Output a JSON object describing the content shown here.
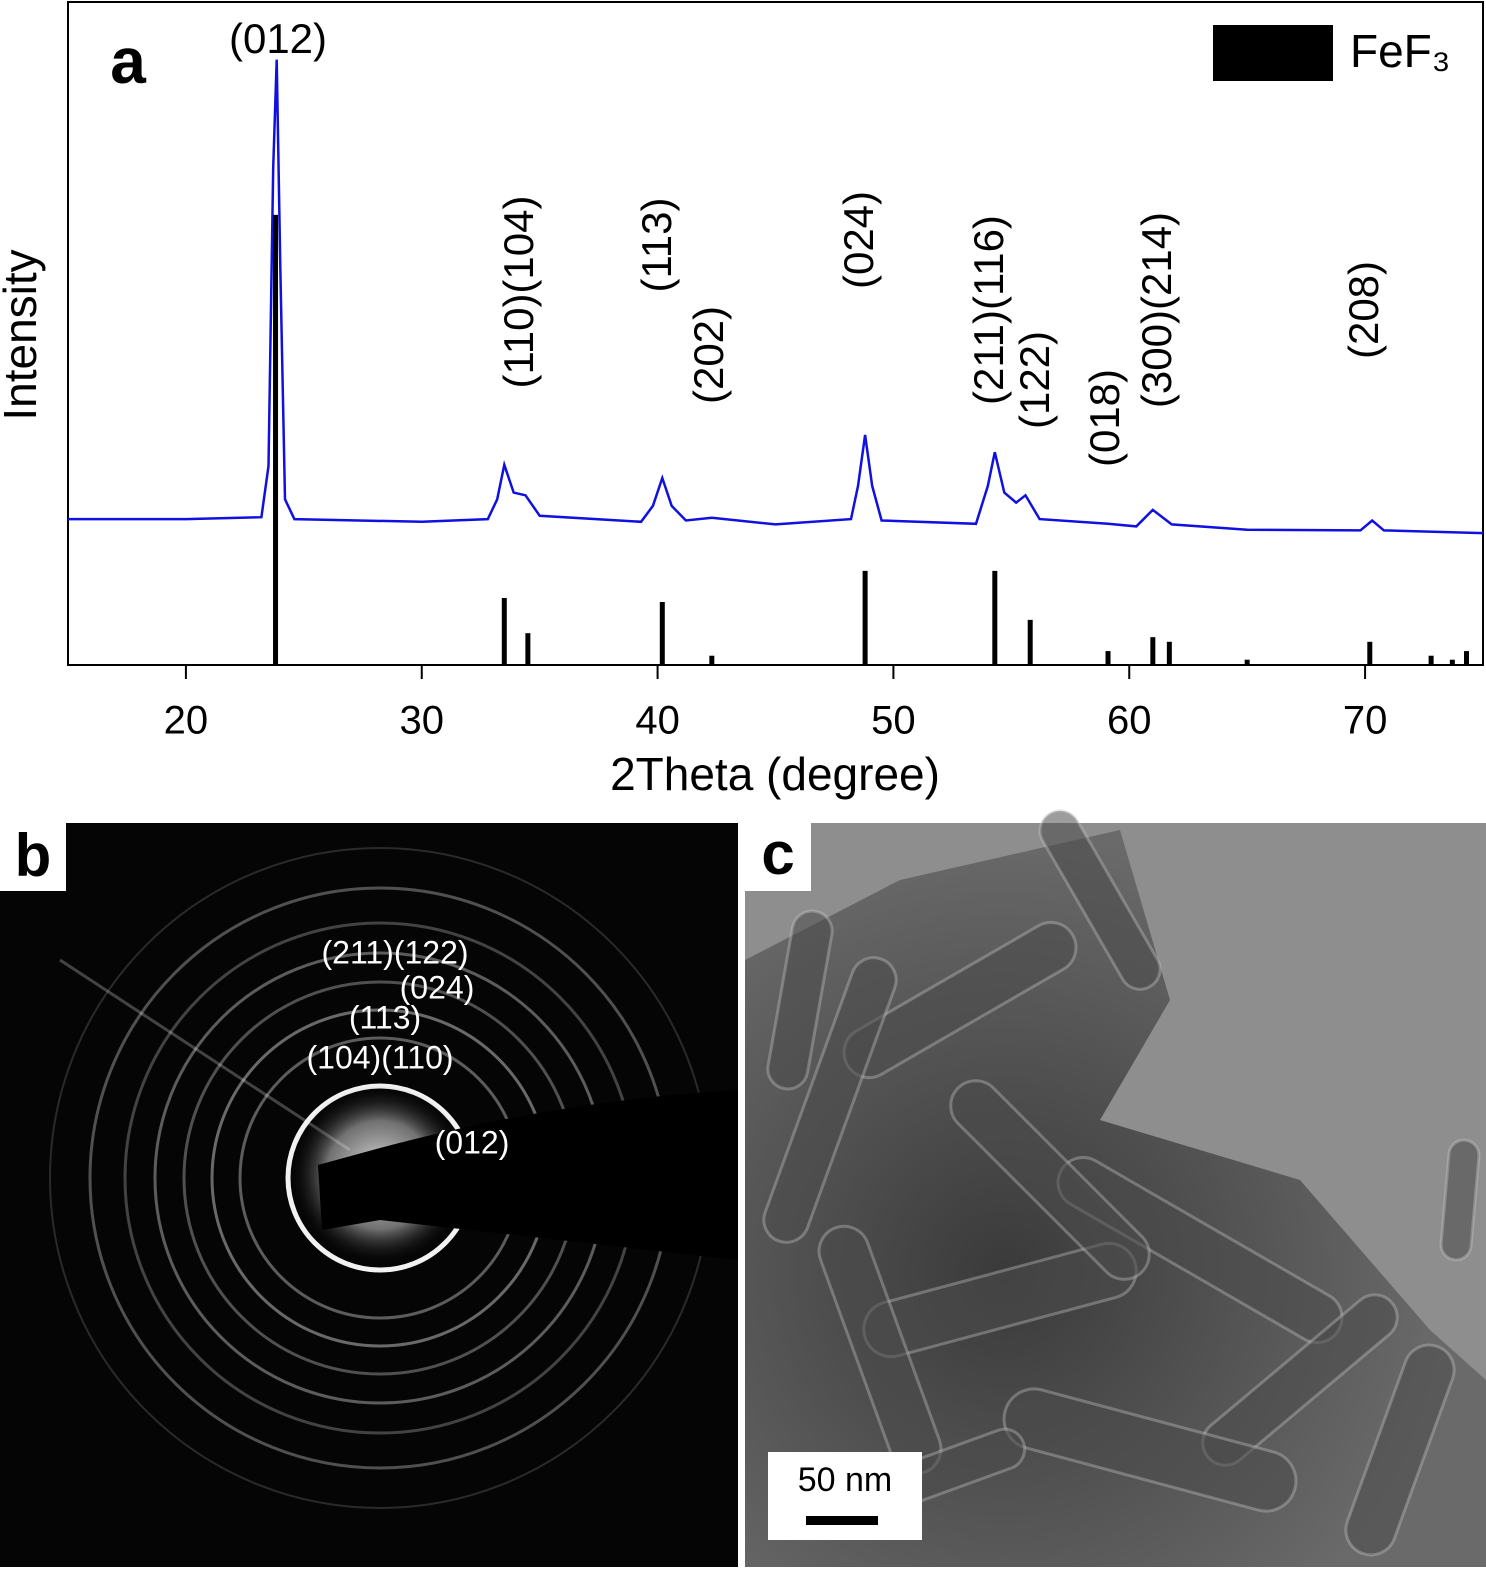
{
  "chart_data": {
    "type": "line",
    "panel_label": "a",
    "xlabel": "2Theta (degree)",
    "ylabel": "Intensity",
    "xlim": [
      15,
      75
    ],
    "xticks": [
      20,
      30,
      40,
      50,
      60,
      70
    ],
    "ylim": [
      0,
      100
    ],
    "pattern": {
      "color": "#1010e0",
      "x": [
        15,
        20,
        23.2,
        23.5,
        23.7,
        23.85,
        24.0,
        24.2,
        24.6,
        30,
        32.8,
        33.2,
        33.5,
        33.9,
        34.4,
        35.0,
        39.3,
        39.8,
        40.2,
        40.6,
        41.2,
        42.3,
        45,
        48.2,
        48.5,
        48.8,
        49.1,
        49.5,
        53.5,
        54.0,
        54.3,
        54.7,
        55.2,
        55.6,
        56.2,
        59.1,
        60.3,
        61.0,
        61.8,
        65,
        69.8,
        70.3,
        70.8,
        75
      ],
      "values": [
        22.0,
        22.0,
        22.3,
        30,
        75,
        91.3,
        60,
        25,
        22,
        21.6,
        22,
        25,
        30.2,
        26,
        25.6,
        22.5,
        21.6,
        24,
        28.2,
        24,
        21.8,
        22.2,
        21.2,
        22,
        27,
        34.7,
        27,
        21.8,
        21.3,
        27,
        32.1,
        26,
        24.5,
        25.6,
        22,
        21.3,
        20.9,
        23.4,
        21.2,
        20.4,
        20.3,
        21.8,
        20.3,
        19.9
      ]
    },
    "reference": {
      "name": "FeF₃",
      "color": "#000000",
      "x": [
        23.8,
        33.5,
        34.5,
        40.2,
        42.3,
        48.8,
        54.3,
        55.8,
        59.1,
        61.0,
        61.7,
        65.0,
        70.2,
        72.8,
        73.7,
        74.3
      ],
      "values": [
        67.9,
        10.1,
        4.8,
        9.5,
        1.4,
        14.2,
        14.2,
        6.8,
        2.1,
        4.2,
        3.5,
        0.8,
        3.5,
        1.4,
        0.8,
        2.1
      ]
    },
    "annotations": [
      "(012)",
      "(110)(104)",
      "(113)",
      "(202)",
      "(024)",
      "(211)(116)",
      "(122)",
      "(018)",
      "(300)(214)",
      "(208)"
    ]
  },
  "panels": {
    "b": {
      "label": "b",
      "ring_labels": [
        "(211)(122)",
        "(024)",
        "(113)",
        "(104)(110)",
        "(012)"
      ]
    },
    "c": {
      "label": "c",
      "scale_bar": "50 nm"
    }
  }
}
